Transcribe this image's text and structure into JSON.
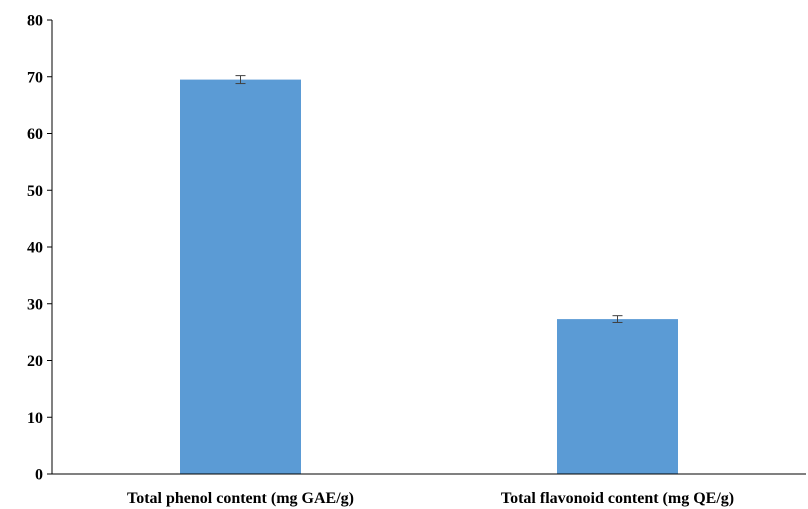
{
  "chart_data": {
    "type": "bar",
    "title": "",
    "xlabel": "",
    "ylabel": "",
    "categories": [
      "Total phenol content (mg GAE/g)",
      "Total flavonoid content (mg QE/g)"
    ],
    "values": [
      69.5,
      27.3
    ],
    "error": [
      0.7,
      0.6
    ],
    "ylim": [
      0,
      80
    ],
    "yticks": [
      0,
      10,
      20,
      30,
      40,
      50,
      60,
      70,
      80
    ],
    "grid": false,
    "legend": "none",
    "bar_color": "#5b9bd5",
    "errorbar_color": "#404040"
  }
}
